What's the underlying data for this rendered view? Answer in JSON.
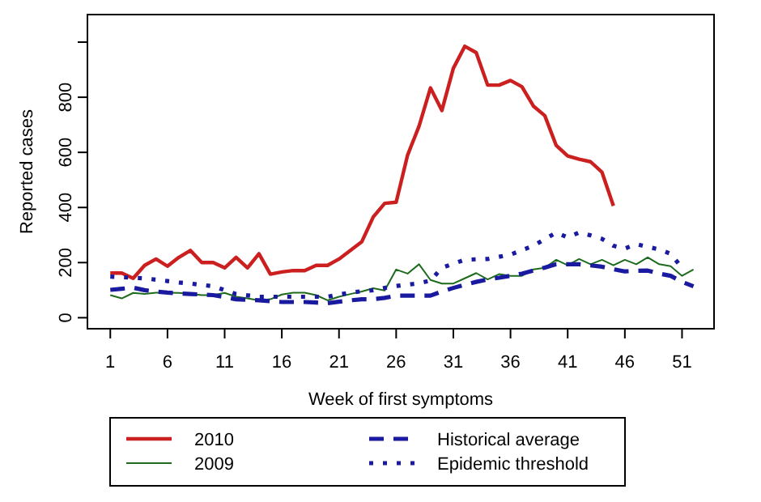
{
  "chart_data": {
    "type": "line",
    "xlabel": "Week of first symptoms",
    "ylabel": "Reported cases",
    "x": [
      1,
      2,
      3,
      4,
      5,
      6,
      7,
      8,
      9,
      10,
      11,
      12,
      13,
      14,
      15,
      16,
      17,
      18,
      19,
      20,
      21,
      22,
      23,
      24,
      25,
      26,
      27,
      28,
      29,
      30,
      31,
      32,
      33,
      34,
      35,
      36,
      37,
      38,
      39,
      40,
      41,
      42,
      43,
      44,
      45,
      46,
      47,
      48,
      49,
      50,
      51,
      52
    ],
    "series": [
      {
        "name": "2010",
        "color": "#cc2020",
        "line_style": "solid",
        "values": [
          162,
          162,
          143,
          190,
          213,
          187,
          219,
          244,
          200,
          200,
          181,
          219,
          181,
          232,
          158,
          166,
          171,
          171,
          190,
          190,
          213,
          244,
          276,
          366,
          415,
          419,
          590,
          695,
          834,
          752,
          905,
          985,
          962,
          844,
          844,
          861,
          838,
          768,
          733,
          625,
          587,
          575,
          566,
          528,
          406,
          null,
          null,
          null,
          null,
          null,
          null,
          null
        ]
      },
      {
        "name": "2009",
        "color": "#1e6b1e",
        "line_style": "solid",
        "values": [
          82,
          70,
          90,
          86,
          91,
          91,
          90,
          86,
          82,
          82,
          90,
          76,
          70,
          63,
          67,
          84,
          91,
          91,
          82,
          63,
          76,
          86,
          95,
          107,
          99,
          175,
          160,
          194,
          137,
          124,
          124,
          143,
          162,
          139,
          158,
          152,
          152,
          175,
          181,
          210,
          190,
          213,
          194,
          210,
          190,
          210,
          194,
          219,
          194,
          187,
          152,
          175
        ]
      },
      {
        "name": "Historical average",
        "color": "#1a1aa0",
        "line_style": "dashed",
        "values": [
          101,
          105,
          109,
          100,
          95,
          91,
          88,
          86,
          84,
          82,
          75,
          67,
          65,
          63,
          60,
          57,
          57,
          57,
          55,
          53,
          58,
          63,
          67,
          67,
          72,
          80,
          80,
          80,
          80,
          95,
          108,
          120,
          130,
          139,
          145,
          152,
          160,
          171,
          182,
          194,
          194,
          194,
          190,
          185,
          176,
          168,
          170,
          171,
          160,
          152,
          130,
          114
        ]
      },
      {
        "name": "Epidemic threshold",
        "color": "#1a1aa0",
        "line_style": "dotted",
        "values": [
          149,
          147,
          145,
          143,
          138,
          133,
          128,
          124,
          119,
          114,
          100,
          86,
          81,
          76,
          76,
          76,
          76,
          76,
          76,
          76,
          84,
          91,
          96,
          100,
          108,
          115,
          120,
          125,
          135,
          181,
          196,
          210,
          212,
          213,
          221,
          229,
          245,
          261,
          285,
          309,
          291,
          309,
          299,
          286,
          261,
          251,
          267,
          257,
          248,
          232,
          181,
          null
        ]
      }
    ],
    "xlim": [
      -1,
      53.8
    ],
    "ylim": [
      -40,
      1100
    ],
    "xticks": [
      1,
      6,
      11,
      16,
      21,
      26,
      31,
      36,
      41,
      46,
      51
    ],
    "yticks": [
      0,
      200,
      400,
      600,
      800,
      {
        "value": 1000,
        "label": null
      }
    ],
    "grid": false,
    "legend": "bottom"
  }
}
